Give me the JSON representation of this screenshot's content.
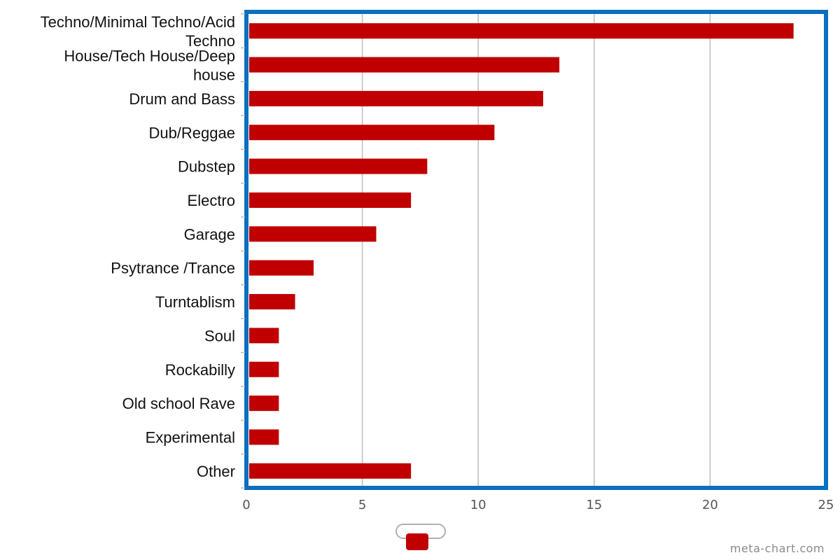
{
  "chart_data": {
    "type": "bar",
    "orientation": "horizontal",
    "categories": [
      "Techno/Minimal Techno/Acid Techno",
      "House/Tech House/Deep house",
      "Drum and Bass",
      "Dub/Reggae",
      "Dubstep",
      "Electro",
      "Garage",
      "Psytrance /Trance",
      "Turntablism",
      "Soul",
      "Rockabilly",
      "Old school Rave",
      "Experimental",
      "Other"
    ],
    "category_lines": [
      [
        "Techno/Minimal Techno/Acid",
        "Techno"
      ],
      [
        "House/Tech House/Deep",
        "house"
      ],
      [
        "Drum and Bass"
      ],
      [
        "Dub/Reggae"
      ],
      [
        "Dubstep"
      ],
      [
        "Electro"
      ],
      [
        "Garage"
      ],
      [
        "Psytrance /Trance"
      ],
      [
        "Turntablism"
      ],
      [
        "Soul"
      ],
      [
        "Rockabilly"
      ],
      [
        "Old school Rave"
      ],
      [
        "Experimental"
      ],
      [
        "Other"
      ]
    ],
    "series": [
      {
        "values": [
          23.6,
          13.5,
          12.8,
          10.7,
          7.8,
          7.1,
          5.6,
          2.9,
          2.1,
          1.4,
          1.4,
          1.4,
          1.4,
          7.1
        ]
      }
    ],
    "xlim": [
      0,
      25
    ],
    "xticks": [
      "0",
      "5",
      "10",
      "15",
      "20",
      "25"
    ],
    "title": "",
    "xlabel": "",
    "ylabel": "",
    "grid": "vertical",
    "colors": {
      "bar": "#c00000",
      "frame": "#0b6fbf",
      "grid": "#bdbdbd",
      "tick_text": "#555555"
    }
  },
  "legend": {
    "placement": "bottom-center"
  },
  "watermark": "meta-chart.com"
}
